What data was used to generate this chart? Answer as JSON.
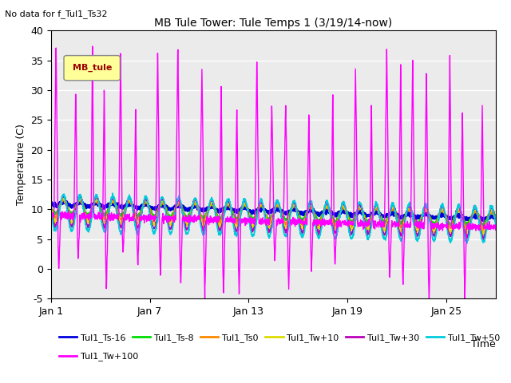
{
  "title": "MB Tule Tower: Tule Temps 1 (3/19/14-now)",
  "no_data_text": "No data for f_Tul1_Ts32",
  "ylabel": "Temperature (C)",
  "xlabel": "Time",
  "ylim": [
    -5,
    40
  ],
  "xlim_days": [
    0,
    27
  ],
  "xtick_labels": [
    "Jan 1",
    "Jan 7",
    "Jan 13",
    "Jan 19",
    "Jan 25"
  ],
  "xtick_positions": [
    0,
    6,
    12,
    18,
    24
  ],
  "ytick_labels": [
    "-5",
    "0",
    "5",
    "10",
    "15",
    "20",
    "25",
    "30",
    "35",
    "40"
  ],
  "ytick_positions": [
    -5,
    0,
    5,
    10,
    15,
    20,
    25,
    30,
    35,
    40
  ],
  "legend_box_label": "MB_tule",
  "legend_box_color": "#ffff99",
  "legend_box_text_color": "#990000",
  "plot_bg_color": "#ebebeb",
  "fig_bg_color": "#ffffff",
  "series": [
    {
      "label": "Tul1_Ts-16",
      "color": "#0000dd",
      "lw": 1.8,
      "base": 11.0,
      "amp": 0.3,
      "trend": -2.5
    },
    {
      "label": "Tul1_Ts-8",
      "color": "#00dd00",
      "lw": 1.2,
      "base": 10.5,
      "amp": 1.2,
      "trend": -2.0
    },
    {
      "label": "Tul1_Ts0",
      "color": "#ff8800",
      "lw": 1.2,
      "base": 10.2,
      "amp": 1.5,
      "trend": -2.0
    },
    {
      "label": "Tul1_Tw+10",
      "color": "#dddd00",
      "lw": 1.2,
      "base": 10.0,
      "amp": 2.0,
      "trend": -2.0
    },
    {
      "label": "Tul1_Tw+30",
      "color": "#bb00bb",
      "lw": 1.2,
      "base": 9.8,
      "amp": 2.5,
      "trend": -2.0
    },
    {
      "label": "Tul1_Tw+50",
      "color": "#00ccdd",
      "lw": 1.2,
      "base": 9.5,
      "amp": 3.0,
      "trend": -2.0
    },
    {
      "label": "Tul1_Tw+100",
      "color": "#ff00ff",
      "lw": 1.0,
      "base": 9.0,
      "amp": 0.0,
      "trend": -2.0
    }
  ],
  "legend_ncol": 3,
  "legend_rows": [
    [
      "Tul1_Ts-16",
      "Tul1_Ts-8",
      "Tul1_Ts0",
      "Tul1_Tw+10",
      "Tul1_Tw+30",
      "Tul1_Tw+50"
    ],
    [
      "Tul1_Tw+100"
    ]
  ]
}
